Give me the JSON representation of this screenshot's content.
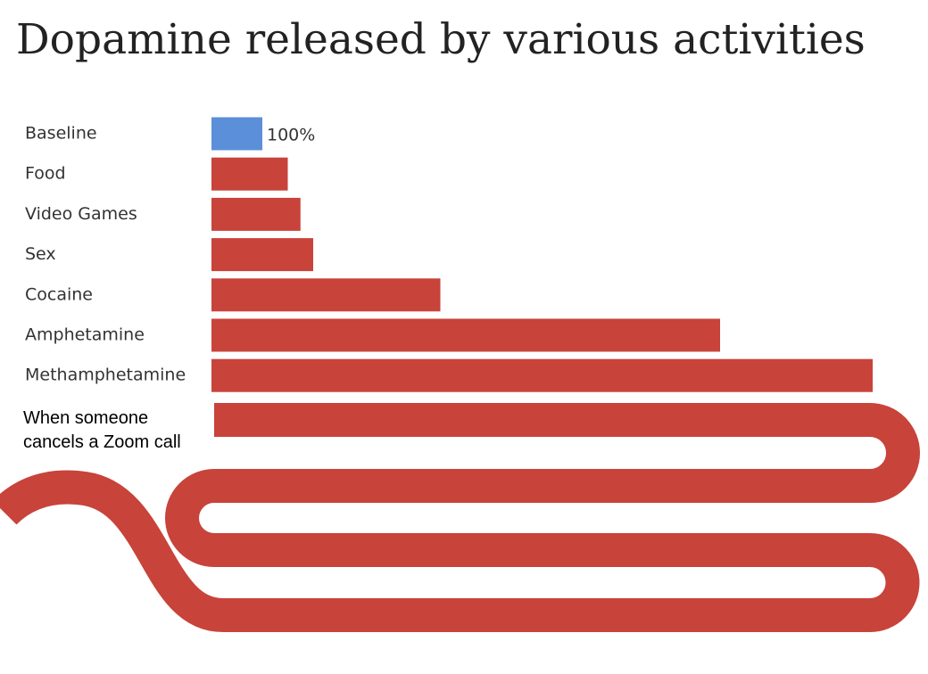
{
  "chart_data": {
    "type": "bar",
    "title": "Dopamine released by various activities",
    "categories": [
      "Baseline",
      "Food",
      "Video Games",
      "Sex",
      "Cocaine",
      "Amphetamine",
      "Methamphetamine",
      "When someone cancels a Zoom call"
    ],
    "values": [
      100,
      150,
      175,
      200,
      450,
      1000,
      1300,
      null
    ],
    "value_labels": [
      "100%",
      null,
      null,
      null,
      null,
      null,
      null,
      null
    ],
    "colors": [
      "#5b8fd9",
      "#c8433a",
      "#c8433a",
      "#c8433a",
      "#c8433a",
      "#c8433a",
      "#c8433a",
      "#c8433a"
    ]
  }
}
